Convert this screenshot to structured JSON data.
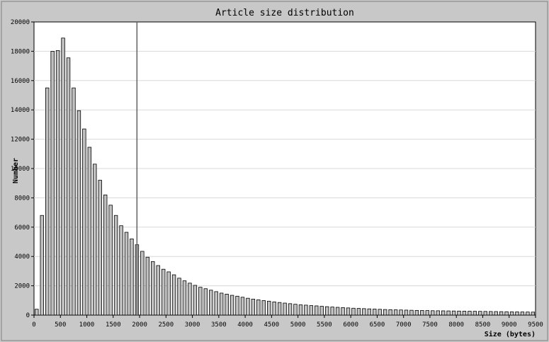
{
  "chart_data": {
    "type": "bar",
    "title": "Article size distribution",
    "xlabel": "Size (bytes)",
    "ylabel": "Number",
    "xlim": [
      0,
      9500
    ],
    "ylim": [
      0,
      20000
    ],
    "x_ticks": [
      0,
      500,
      1000,
      1500,
      2000,
      2500,
      3000,
      3500,
      4000,
      4500,
      5000,
      5500,
      6000,
      6500,
      7000,
      7500,
      8000,
      8500,
      9000,
      9500
    ],
    "y_ticks": [
      0,
      2000,
      4000,
      6000,
      8000,
      10000,
      12000,
      14000,
      16000,
      18000,
      20000
    ],
    "bin_width": 100,
    "x": [
      0,
      100,
      200,
      300,
      400,
      500,
      600,
      700,
      800,
      900,
      1000,
      1100,
      1200,
      1300,
      1400,
      1500,
      1600,
      1700,
      1800,
      1900,
      2000,
      2100,
      2200,
      2300,
      2400,
      2500,
      2600,
      2700,
      2800,
      2900,
      3000,
      3100,
      3200,
      3300,
      3400,
      3500,
      3600,
      3700,
      3800,
      3900,
      4000,
      4100,
      4200,
      4300,
      4400,
      4500,
      4600,
      4700,
      4800,
      4900,
      5000,
      5100,
      5200,
      5300,
      5400,
      5500,
      5600,
      5700,
      5800,
      5900,
      6000,
      6100,
      6200,
      6300,
      6400,
      6500,
      6600,
      6700,
      6800,
      6900,
      7000,
      7100,
      7200,
      7300,
      7400,
      7500,
      7600,
      7700,
      7800,
      7900,
      8000,
      8100,
      8200,
      8300,
      8400,
      8500,
      8600,
      8700,
      8800,
      8900,
      9000,
      9100,
      9200,
      9300,
      9400
    ],
    "values": [
      400,
      6800,
      15500,
      18000,
      18050,
      18900,
      17550,
      15500,
      13950,
      12700,
      11450,
      10300,
      9200,
      8200,
      7500,
      6800,
      6100,
      5650,
      5200,
      4800,
      4350,
      3950,
      3650,
      3380,
      3130,
      2950,
      2750,
      2520,
      2340,
      2180,
      2030,
      1900,
      1800,
      1700,
      1600,
      1500,
      1430,
      1350,
      1290,
      1220,
      1150,
      1090,
      1040,
      990,
      950,
      900,
      860,
      820,
      780,
      740,
      700,
      680,
      650,
      630,
      600,
      575,
      550,
      530,
      510,
      490,
      470,
      455,
      440,
      425,
      410,
      395,
      380,
      370,
      360,
      350,
      340,
      330,
      320,
      315,
      310,
      300,
      295,
      290,
      285,
      280,
      275,
      270,
      265,
      260,
      255,
      250,
      245,
      240,
      235,
      230,
      225,
      220,
      215,
      210,
      205
    ],
    "reference_line_x": 1950,
    "grid": "horizontal"
  }
}
